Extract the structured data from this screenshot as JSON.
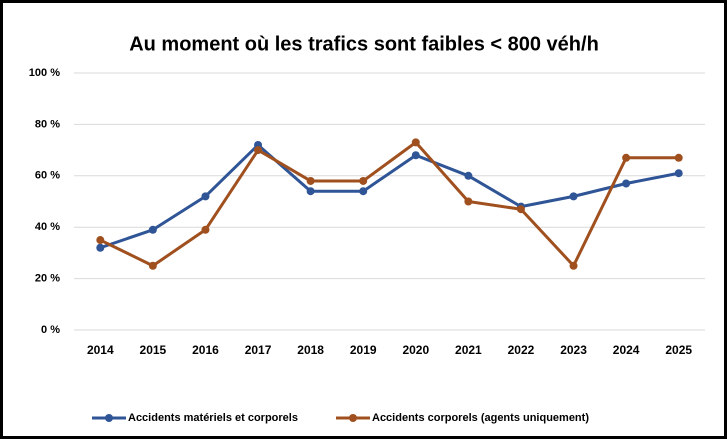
{
  "chart_data": {
    "type": "line",
    "title": "Au moment où les trafics sont faibles < 800 véh/h",
    "categories": [
      "2014",
      "2015",
      "2016",
      "2017",
      "2018",
      "2019",
      "2020",
      "2021",
      "2022",
      "2023",
      "2024",
      "2025"
    ],
    "series": [
      {
        "name": "Accidents matériels et corporels",
        "color": "#2f5597",
        "values": [
          32,
          39,
          52,
          72,
          54,
          54,
          68,
          60,
          48,
          52,
          57,
          61
        ]
      },
      {
        "name": "Accidents corporels (agents uniquement)",
        "color": "#a0501e",
        "values": [
          35,
          25,
          39,
          70,
          58,
          58,
          73,
          50,
          47,
          25,
          67,
          67
        ]
      }
    ],
    "ylim": [
      0,
      100
    ],
    "yticks": [
      {
        "value": 0,
        "label": "0 %"
      },
      {
        "value": 20,
        "label": "20 %"
      },
      {
        "value": 40,
        "label": "40 %"
      },
      {
        "value": 60,
        "label": "60 %"
      },
      {
        "value": 80,
        "label": "80 %"
      },
      {
        "value": 100,
        "label": "100 %"
      }
    ],
    "grid": true,
    "legend": "bottom"
  }
}
